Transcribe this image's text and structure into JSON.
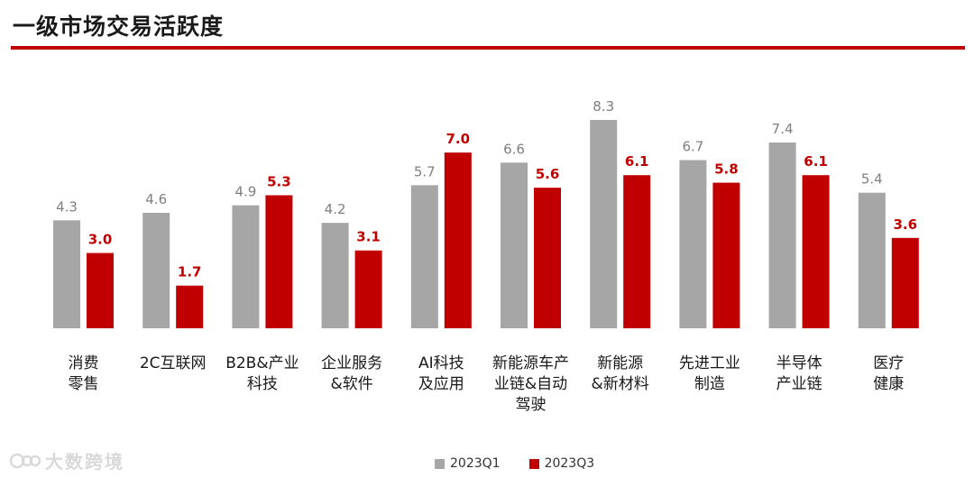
{
  "header": {
    "title": "一级市场交易活跃度"
  },
  "chart_data": {
    "type": "bar",
    "title": "一级市场交易活跃度",
    "categories": [
      "消费\n零售",
      "2C互联网",
      "B2B&产业\n科技",
      "企业服务\n&软件",
      "AI科技\n及应用",
      "新能源车产\n业链&自动\n驾驶",
      "新能源\n&新材料",
      "先进工业\n制造",
      "半导体\n产业链",
      "医疗\n健康"
    ],
    "series": [
      {
        "name": "2023Q1",
        "color": "#a6a6a6",
        "values": [
          4.3,
          4.6,
          4.9,
          4.2,
          5.7,
          6.6,
          8.3,
          6.7,
          7.4,
          5.4
        ]
      },
      {
        "name": "2023Q3",
        "color": "#c00000",
        "values": [
          3.0,
          1.7,
          5.3,
          3.1,
          7.0,
          5.6,
          6.1,
          5.8,
          6.1,
          3.6
        ]
      }
    ],
    "labels": {
      "q1": [
        "4.3",
        "4.6",
        "4.9",
        "4.2",
        "5.7",
        "6.6",
        "8.3",
        "6.7",
        "7.4",
        "5.4"
      ],
      "q3": [
        "3.0",
        "1.7",
        "5.3",
        "3.1",
        "7.0",
        "5.6",
        "6.1",
        "5.8",
        "6.1",
        "3.6"
      ]
    },
    "ylim": [
      0,
      8.3
    ],
    "grid": false,
    "legend": "bottom-center"
  },
  "watermark": {
    "text": "大数跨境"
  }
}
